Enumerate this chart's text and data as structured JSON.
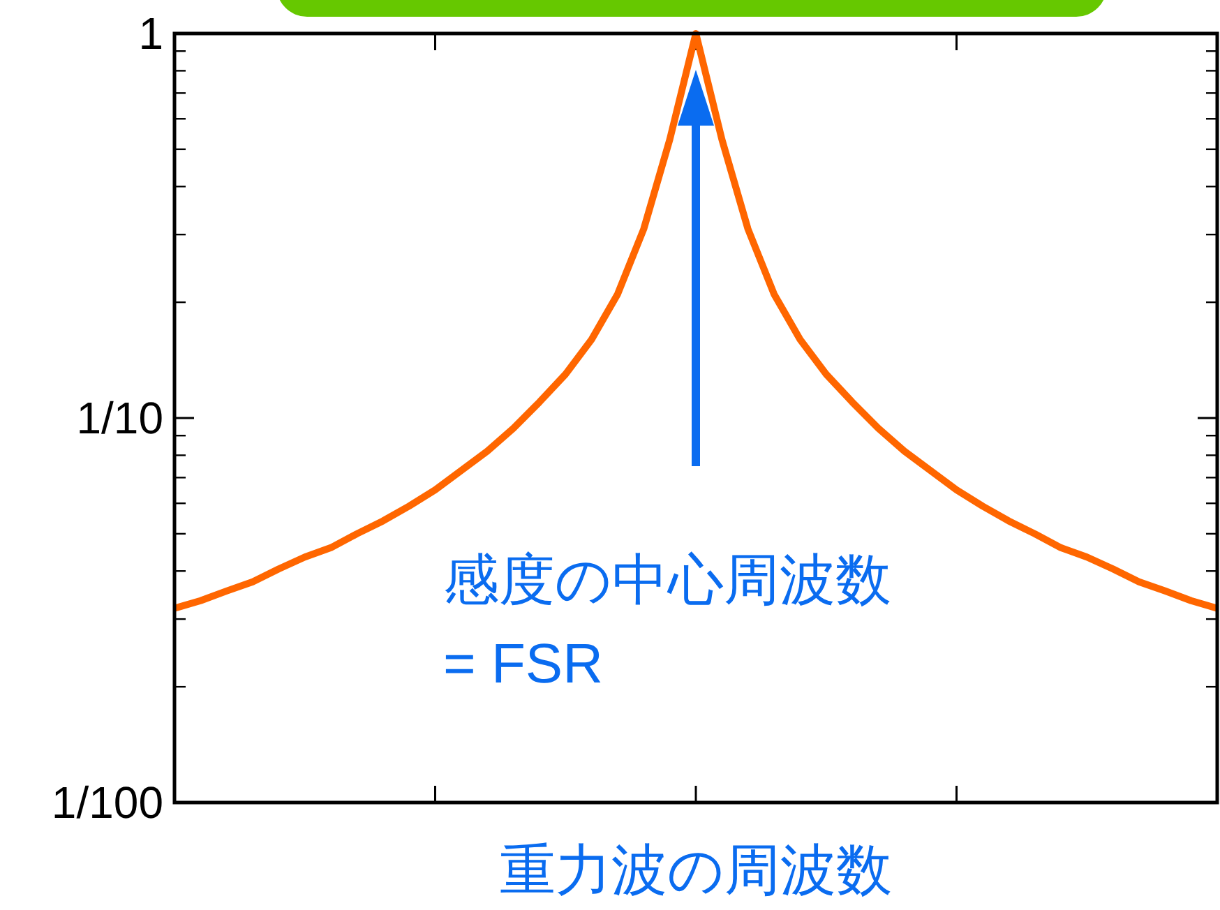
{
  "chart_data": {
    "type": "line",
    "xlabel": "重力波の周波数",
    "categories": [
      null,
      null,
      null,
      null,
      null,
      null,
      null,
      null,
      null,
      null,
      null,
      null,
      null,
      null,
      null,
      null,
      null,
      null,
      null,
      null,
      null,
      null,
      null,
      null,
      null,
      null,
      null,
      null,
      null,
      null,
      null,
      null,
      null,
      null,
      null,
      null,
      null,
      null,
      null,
      null,
      null
    ],
    "series": [
      {
        "color": "#ff6600",
        "values": [
          0.032,
          0.0335,
          0.0355,
          0.0375,
          0.0405,
          0.0435,
          0.046,
          0.05,
          0.054,
          0.059,
          0.065,
          0.073,
          0.082,
          0.094,
          0.11,
          0.13,
          0.16,
          0.21,
          0.31,
          0.53,
          1,
          0.53,
          0.31,
          0.21,
          0.16,
          0.13,
          0.11,
          0.094,
          0.082,
          0.073,
          0.065,
          0.059,
          0.054,
          0.05,
          0.046,
          0.0435,
          0.0405,
          0.0375,
          0.0355,
          0.0335,
          0.032
        ]
      }
    ],
    "ylim": [
      0.01,
      1
    ],
    "yticks": [
      {
        "value": 0.01,
        "label": "1/100"
      },
      {
        "value": 0.1,
        "label": "1/10"
      },
      {
        "value": 1,
        "label": "1"
      }
    ],
    "log": "y",
    "tick_labels": "y",
    "annotations": [
      "感度の中心周波数\n= FSR"
    ]
  }
}
